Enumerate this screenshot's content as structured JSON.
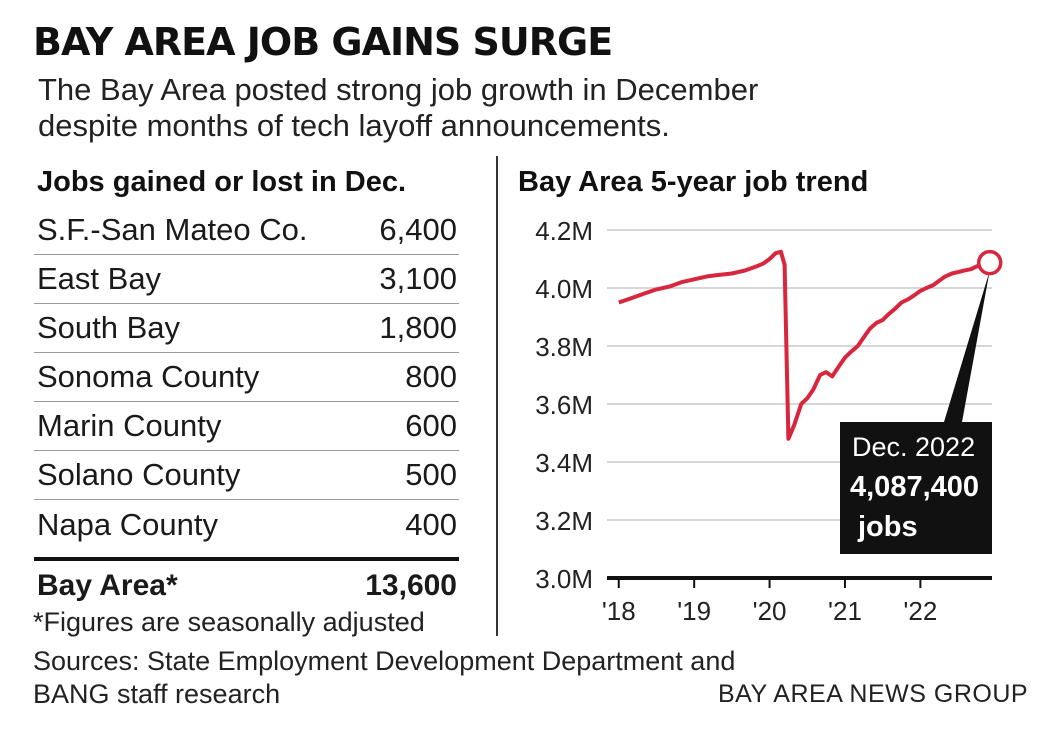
{
  "headline": "BAY AREA JOB GAINS SURGE",
  "subhead": "The Bay Area posted strong job growth in December despite months of tech layoff announcements.",
  "table": {
    "title": "Jobs gained or lost in Dec.",
    "rows": [
      {
        "label": "S.F.-San Mateo Co.",
        "value": "6,400"
      },
      {
        "label": "East Bay",
        "value": "3,100"
      },
      {
        "label": "South Bay",
        "value": "1,800"
      },
      {
        "label": "Sonoma County",
        "value": "800"
      },
      {
        "label": "Marin County",
        "value": "600"
      },
      {
        "label": "Solano County",
        "value": "500"
      },
      {
        "label": "Napa County",
        "value": "400"
      }
    ],
    "total": {
      "label": "Bay Area*",
      "value": "13,600"
    }
  },
  "footnote": "*Figures are seasonally adjusted",
  "sources": "Sources: State Employment Development Department and BANG staff research",
  "credit": "BAY AREA NEWS GROUP",
  "chart_data": {
    "type": "line",
    "title": "Bay Area 5-year job trend",
    "xlabel": "",
    "ylabel": "",
    "y_ticks": [
      "4.2M",
      "4.0M",
      "3.8M",
      "3.6M",
      "3.4M",
      "3.2M",
      "3.0M"
    ],
    "x_ticks": [
      "'18",
      "'19",
      "'20",
      "'21",
      "'22"
    ],
    "ylim": [
      3000000,
      4200000
    ],
    "xlim": [
      2017.95,
      2022.95
    ],
    "grid": "horizontal",
    "line_color": "#d7263d",
    "series": [
      {
        "values": [
          [
            2018.0,
            3950000
          ],
          [
            2018.17,
            3965000
          ],
          [
            2018.33,
            3980000
          ],
          [
            2018.5,
            3995000
          ],
          [
            2018.67,
            4005000
          ],
          [
            2018.83,
            4020000
          ],
          [
            2019.0,
            4030000
          ],
          [
            2019.17,
            4040000
          ],
          [
            2019.33,
            4045000
          ],
          [
            2019.5,
            4050000
          ],
          [
            2019.67,
            4060000
          ],
          [
            2019.83,
            4075000
          ],
          [
            2019.92,
            4085000
          ],
          [
            2020.0,
            4100000
          ],
          [
            2020.08,
            4120000
          ],
          [
            2020.15,
            4125000
          ],
          [
            2020.2,
            4080000
          ],
          [
            2020.25,
            3480000
          ],
          [
            2020.33,
            3530000
          ],
          [
            2020.42,
            3600000
          ],
          [
            2020.5,
            3620000
          ],
          [
            2020.58,
            3650000
          ],
          [
            2020.67,
            3700000
          ],
          [
            2020.75,
            3710000
          ],
          [
            2020.83,
            3695000
          ],
          [
            2020.92,
            3730000
          ],
          [
            2021.0,
            3760000
          ],
          [
            2021.08,
            3780000
          ],
          [
            2021.17,
            3800000
          ],
          [
            2021.25,
            3830000
          ],
          [
            2021.33,
            3860000
          ],
          [
            2021.42,
            3880000
          ],
          [
            2021.5,
            3890000
          ],
          [
            2021.58,
            3910000
          ],
          [
            2021.67,
            3930000
          ],
          [
            2021.75,
            3950000
          ],
          [
            2021.83,
            3960000
          ],
          [
            2021.92,
            3975000
          ],
          [
            2022.0,
            3990000
          ],
          [
            2022.08,
            4000000
          ],
          [
            2022.17,
            4010000
          ],
          [
            2022.25,
            4025000
          ],
          [
            2022.33,
            4040000
          ],
          [
            2022.42,
            4050000
          ],
          [
            2022.5,
            4055000
          ],
          [
            2022.58,
            4060000
          ],
          [
            2022.67,
            4065000
          ],
          [
            2022.75,
            4075000
          ],
          [
            2022.83,
            4080000
          ],
          [
            2022.92,
            4087400
          ]
        ]
      }
    ],
    "annotation": {
      "date_label": "Dec. 2022",
      "value_label": "4,087,400",
      "unit_label": "jobs",
      "point": [
        2022.92,
        4087400
      ]
    }
  }
}
